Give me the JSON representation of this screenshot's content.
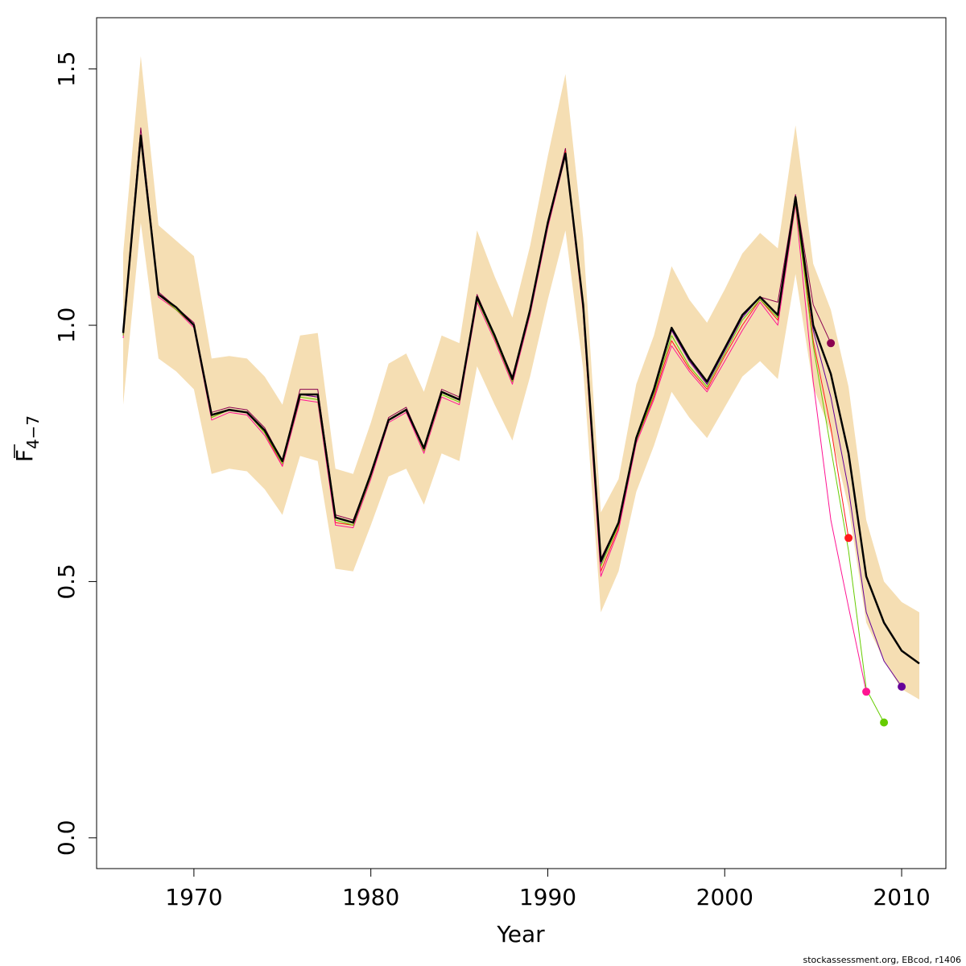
{
  "chart_data": {
    "type": "line",
    "xlabel": "Year",
    "ylabel_main": "F",
    "ylabel_sub": "4−7",
    "xlim": [
      1964.5,
      2012.5
    ],
    "ylim": [
      -0.06,
      1.6
    ],
    "x_ticks": [
      1970,
      1980,
      1990,
      2000,
      2010
    ],
    "x_tick_labels": [
      "1970",
      "1980",
      "1990",
      "2000",
      "2010"
    ],
    "y_ticks": [
      0.0,
      0.5,
      1.0,
      1.5
    ],
    "y_tick_labels": [
      "0.0",
      "0.5",
      "1.0",
      "1.5"
    ],
    "footer": "stockassessment.org, EBcod, r1406",
    "colors": {
      "band": "#f5deb3",
      "base": "#000000",
      "retro": [
        "#8b0050",
        "#ff1a1a",
        "#ff1493",
        "#66cc00",
        "#660099"
      ]
    },
    "base": {
      "x": [
        1966,
        1967,
        1968,
        1969,
        1970,
        1971,
        1972,
        1973,
        1974,
        1975,
        1976,
        1977,
        1978,
        1979,
        1980,
        1981,
        1982,
        1983,
        1984,
        1985,
        1986,
        1987,
        1988,
        1989,
        1990,
        1991,
        1992,
        1993,
        1994,
        1995,
        1996,
        1997,
        1998,
        1999,
        2000,
        2001,
        2002,
        2003,
        2004,
        2005,
        2006,
        2007,
        2008,
        2009,
        2010,
        2011
      ],
      "y": [
        0.985,
        1.37,
        1.06,
        1.035,
        1.0,
        0.825,
        0.835,
        0.83,
        0.795,
        0.735,
        0.865,
        0.865,
        0.625,
        0.615,
        0.71,
        0.815,
        0.835,
        0.76,
        0.87,
        0.855,
        1.055,
        0.98,
        0.895,
        1.03,
        1.2,
        1.335,
        1.04,
        0.54,
        0.615,
        0.78,
        0.875,
        0.995,
        0.935,
        0.89,
        0.955,
        1.02,
        1.055,
        1.02,
        1.25,
        1.0,
        0.905,
        0.75,
        0.51,
        0.42,
        0.365,
        0.34
      ],
      "lower": [
        0.845,
        1.2,
        0.935,
        0.91,
        0.875,
        0.71,
        0.72,
        0.715,
        0.68,
        0.63,
        0.745,
        0.735,
        0.525,
        0.52,
        0.61,
        0.705,
        0.72,
        0.65,
        0.75,
        0.735,
        0.92,
        0.845,
        0.775,
        0.9,
        1.05,
        1.185,
        0.915,
        0.44,
        0.52,
        0.675,
        0.765,
        0.87,
        0.82,
        0.78,
        0.84,
        0.9,
        0.93,
        0.895,
        1.1,
        0.88,
        0.79,
        0.645,
        0.42,
        0.345,
        0.29,
        0.27
      ],
      "upper": [
        1.14,
        1.525,
        1.195,
        1.165,
        1.135,
        0.935,
        0.94,
        0.935,
        0.9,
        0.845,
        0.98,
        0.985,
        0.72,
        0.71,
        0.81,
        0.925,
        0.945,
        0.87,
        0.98,
        0.965,
        1.185,
        1.095,
        1.015,
        1.155,
        1.33,
        1.49,
        1.17,
        0.635,
        0.7,
        0.885,
        0.98,
        1.115,
        1.05,
        1.005,
        1.07,
        1.14,
        1.18,
        1.15,
        1.39,
        1.12,
        1.03,
        0.88,
        0.62,
        0.5,
        0.46,
        0.44
      ]
    },
    "series": [
      {
        "x": [
          1966,
          1967,
          1968,
          1969,
          1970,
          1971,
          1972,
          1973,
          1974,
          1975,
          1976,
          1977,
          1978,
          1979,
          1980,
          1981,
          1982,
          1983,
          1984,
          1985,
          1986,
          1987,
          1988,
          1989,
          1990,
          1991,
          1992,
          1993,
          1994,
          1995,
          1996,
          1997,
          1998,
          1999,
          2000,
          2001,
          2002,
          2003,
          2004,
          2005,
          2006
        ],
        "y": [
          0.99,
          1.385,
          1.065,
          1.035,
          1.005,
          0.83,
          0.84,
          0.835,
          0.8,
          0.735,
          0.875,
          0.875,
          0.63,
          0.62,
          0.71,
          0.82,
          0.84,
          0.76,
          0.875,
          0.86,
          1.06,
          0.98,
          0.9,
          1.03,
          1.2,
          1.345,
          1.035,
          0.545,
          0.615,
          0.78,
          0.875,
          0.99,
          0.93,
          0.885,
          0.955,
          1.02,
          1.055,
          1.045,
          1.255,
          1.04,
          0.965
        ]
      },
      {
        "x": [
          1966,
          1967,
          1968,
          1969,
          1970,
          1971,
          1972,
          1973,
          1974,
          1975,
          1976,
          1977,
          1978,
          1979,
          1980,
          1981,
          1982,
          1983,
          1984,
          1985,
          1986,
          1987,
          1988,
          1989,
          1990,
          1991,
          1992,
          1993,
          1994,
          1995,
          1996,
          1997,
          1998,
          1999,
          2000,
          2001,
          2002,
          2003,
          2004,
          2005,
          2006,
          2007
        ],
        "y": [
          0.98,
          1.37,
          1.06,
          1.03,
          1.0,
          0.82,
          0.835,
          0.83,
          0.79,
          0.725,
          0.865,
          0.86,
          0.615,
          0.61,
          0.705,
          0.815,
          0.835,
          0.755,
          0.87,
          0.855,
          1.055,
          0.975,
          0.89,
          1.025,
          1.195,
          1.34,
          1.03,
          0.52,
          0.605,
          0.775,
          0.86,
          0.97,
          0.915,
          0.875,
          0.94,
          1.0,
          1.05,
          1.01,
          1.245,
          0.97,
          0.8,
          0.585
        ]
      },
      {
        "x": [
          1966,
          1967,
          1968,
          1969,
          1970,
          1971,
          1972,
          1973,
          1974,
          1975,
          1976,
          1977,
          1978,
          1979,
          1980,
          1981,
          1982,
          1983,
          1984,
          1985,
          1986,
          1987,
          1988,
          1989,
          1990,
          1991,
          1992,
          1993,
          1994,
          1995,
          1996,
          1997,
          1998,
          1999,
          2000,
          2001,
          2002,
          2003,
          2004,
          2005,
          2006,
          2007,
          2008
        ],
        "y": [
          0.975,
          1.36,
          1.055,
          1.03,
          0.995,
          0.815,
          0.83,
          0.825,
          0.785,
          0.725,
          0.855,
          0.85,
          0.61,
          0.605,
          0.7,
          0.81,
          0.83,
          0.75,
          0.86,
          0.845,
          1.045,
          0.97,
          0.885,
          1.02,
          1.19,
          1.33,
          1.025,
          0.51,
          0.6,
          0.77,
          0.855,
          0.96,
          0.91,
          0.87,
          0.93,
          0.99,
          1.045,
          1.0,
          1.235,
          0.89,
          0.62,
          0.45,
          0.285
        ]
      },
      {
        "x": [
          1966,
          1967,
          1968,
          1969,
          1970,
          1971,
          1972,
          1973,
          1974,
          1975,
          1976,
          1977,
          1978,
          1979,
          1980,
          1981,
          1982,
          1983,
          1984,
          1985,
          1986,
          1987,
          1988,
          1989,
          1990,
          1991,
          1992,
          1993,
          1994,
          1995,
          1996,
          1997,
          1998,
          1999,
          2000,
          2001,
          2002,
          2003,
          2004,
          2005,
          2006,
          2007,
          2008,
          2009
        ],
        "y": [
          0.98,
          1.365,
          1.06,
          1.03,
          1.0,
          0.82,
          0.835,
          0.83,
          0.79,
          0.73,
          0.86,
          0.855,
          0.62,
          0.61,
          0.705,
          0.815,
          0.835,
          0.755,
          0.865,
          0.85,
          1.05,
          0.975,
          0.89,
          1.025,
          1.195,
          1.335,
          1.03,
          0.53,
          0.61,
          0.775,
          0.865,
          0.98,
          0.92,
          0.88,
          0.945,
          1.01,
          1.05,
          1.015,
          1.24,
          0.96,
          0.76,
          0.56,
          0.29,
          0.225
        ]
      },
      {
        "x": [
          1966,
          1967,
          1968,
          1969,
          1970,
          1971,
          1972,
          1973,
          1974,
          1975,
          1976,
          1977,
          1978,
          1979,
          1980,
          1981,
          1982,
          1983,
          1984,
          1985,
          1986,
          1987,
          1988,
          1989,
          1990,
          1991,
          1992,
          1993,
          1994,
          1995,
          1996,
          1997,
          1998,
          1999,
          2000,
          2001,
          2002,
          2003,
          2004,
          2005,
          2006,
          2007,
          2008,
          2009,
          2010
        ],
        "y": [
          0.985,
          1.37,
          1.06,
          1.035,
          1.0,
          0.825,
          0.835,
          0.83,
          0.795,
          0.735,
          0.865,
          0.86,
          0.625,
          0.615,
          0.71,
          0.815,
          0.835,
          0.76,
          0.87,
          0.855,
          1.055,
          0.98,
          0.895,
          1.03,
          1.2,
          1.335,
          1.04,
          0.535,
          0.615,
          0.78,
          0.87,
          0.99,
          0.93,
          0.885,
          0.95,
          1.015,
          1.055,
          1.02,
          1.25,
          0.99,
          0.86,
          0.68,
          0.44,
          0.345,
          0.295
        ]
      }
    ]
  }
}
